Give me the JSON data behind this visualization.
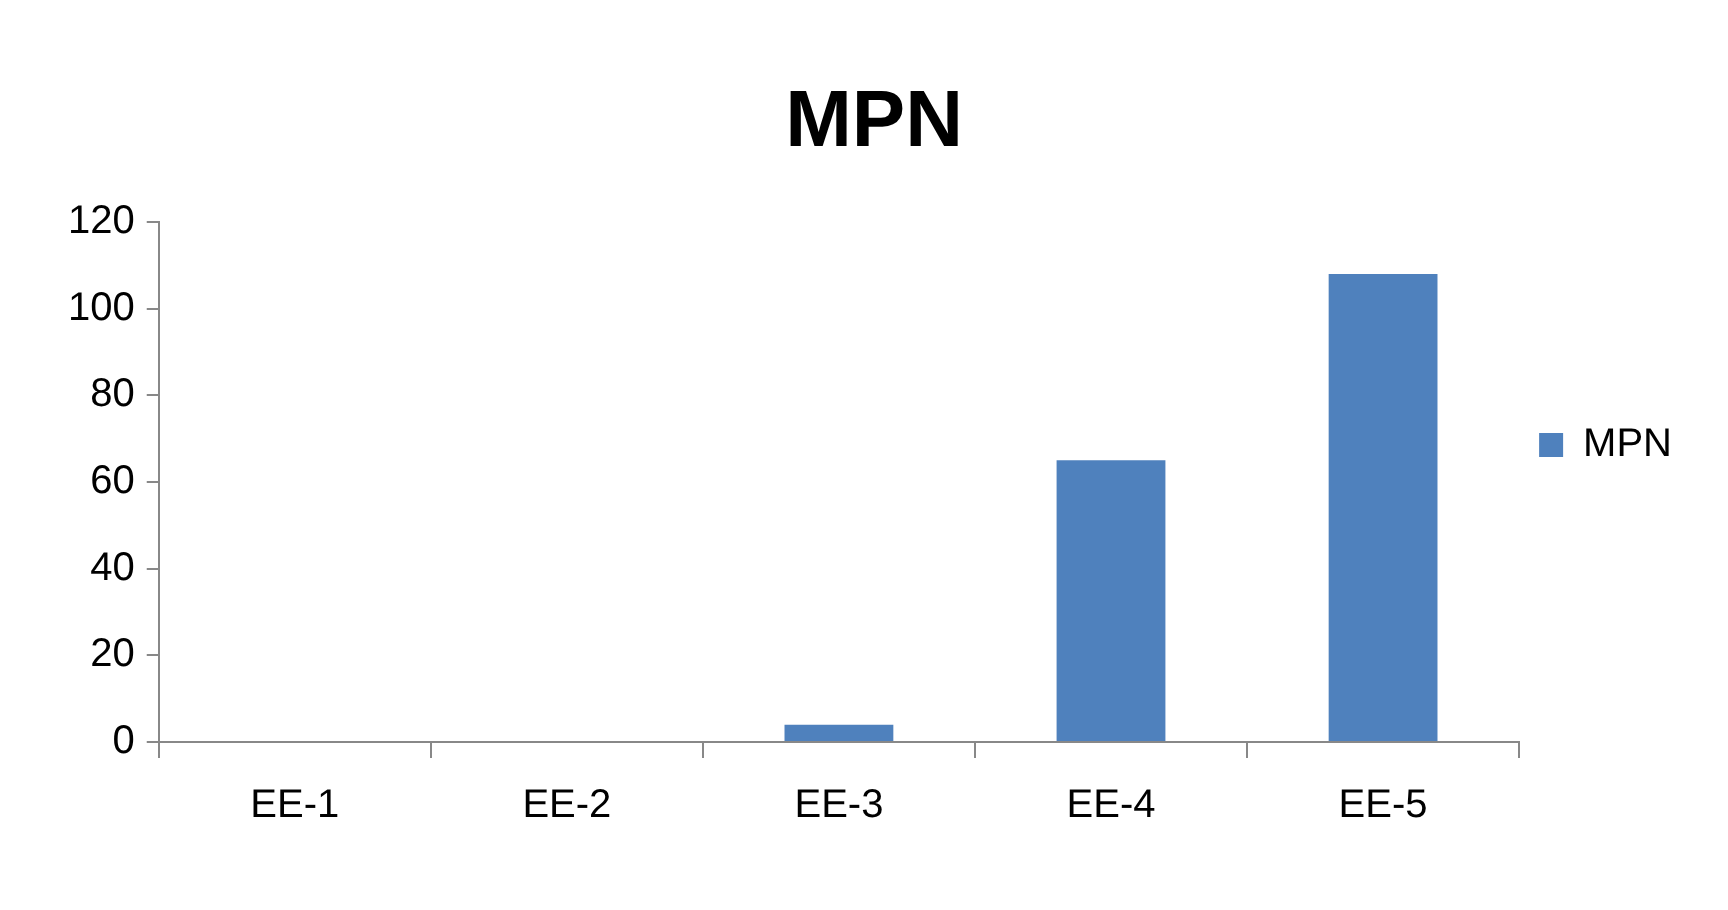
{
  "chart_data": {
    "type": "bar",
    "title": "MPN",
    "categories": [
      "EE-1",
      "EE-2",
      "EE-3",
      "EE-4",
      "EE-5"
    ],
    "series": [
      {
        "name": "MPN",
        "color": "#4f81bd",
        "values": [
          0,
          0,
          4,
          65,
          108
        ]
      }
    ],
    "ylim": [
      0,
      120
    ],
    "yticks": [
      0,
      20,
      40,
      60,
      80,
      100,
      120
    ],
    "grid": false,
    "legend": "right"
  }
}
